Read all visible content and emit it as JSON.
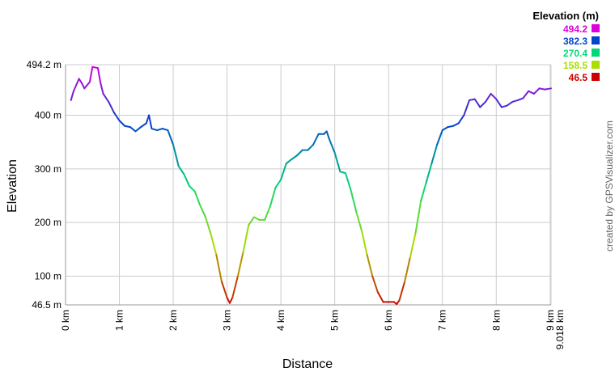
{
  "chart_data": {
    "type": "line",
    "ylabel": "Elevation",
    "xlabel": "Distance",
    "credit": "created by GPSVisualizer.com",
    "xlim": [
      0,
      9.018
    ],
    "ylim": [
      46.5,
      494.2
    ],
    "xticks": [
      {
        "value": 0,
        "label": "0 km"
      },
      {
        "value": 1,
        "label": "1 km"
      },
      {
        "value": 2,
        "label": "2 km"
      },
      {
        "value": 3,
        "label": "3 km"
      },
      {
        "value": 4,
        "label": "4 km"
      },
      {
        "value": 5,
        "label": "5 km"
      },
      {
        "value": 6,
        "label": "6 km"
      },
      {
        "value": 7,
        "label": "7 km"
      },
      {
        "value": 8,
        "label": "8 km"
      },
      {
        "value": 9,
        "label": "9 km"
      },
      {
        "value": 9.018,
        "label": "9.018 km"
      }
    ],
    "yticks": [
      {
        "value": 46.5,
        "label": "46.5 m"
      },
      {
        "value": 100,
        "label": "100 m"
      },
      {
        "value": 200,
        "label": "200 m"
      },
      {
        "value": 300,
        "label": "300 m"
      },
      {
        "value": 400,
        "label": "400 m"
      },
      {
        "value": 494.2,
        "label": "494.2 m"
      }
    ],
    "grid": true,
    "legend": {
      "title": "Elevation (m)",
      "entries": [
        {
          "value": 494.2,
          "color": "#dd00dd"
        },
        {
          "value": 382.3,
          "color": "#0044cc"
        },
        {
          "value": 270.4,
          "color": "#00d878"
        },
        {
          "value": 158.5,
          "color": "#aadd00"
        },
        {
          "value": 46.5,
          "color": "#cc0000"
        }
      ]
    },
    "x": [
      0.1,
      0.15,
      0.25,
      0.3,
      0.35,
      0.45,
      0.5,
      0.6,
      0.65,
      0.7,
      0.8,
      0.9,
      1.0,
      1.1,
      1.2,
      1.3,
      1.4,
      1.5,
      1.55,
      1.6,
      1.7,
      1.8,
      1.9,
      2.0,
      2.1,
      2.2,
      2.3,
      2.4,
      2.5,
      2.6,
      2.7,
      2.8,
      2.9,
      3.0,
      3.05,
      3.1,
      3.2,
      3.3,
      3.4,
      3.5,
      3.6,
      3.7,
      3.8,
      3.9,
      4.0,
      4.1,
      4.2,
      4.3,
      4.4,
      4.5,
      4.6,
      4.7,
      4.8,
      4.85,
      4.9,
      5.0,
      5.1,
      5.2,
      5.3,
      5.4,
      5.5,
      5.6,
      5.7,
      5.8,
      5.9,
      6.0,
      6.1,
      6.15,
      6.2,
      6.3,
      6.4,
      6.5,
      6.6,
      6.7,
      6.8,
      6.9,
      7.0,
      7.1,
      7.2,
      7.3,
      7.4,
      7.5,
      7.6,
      7.7,
      7.8,
      7.9,
      8.0,
      8.1,
      8.2,
      8.3,
      8.4,
      8.5,
      8.6,
      8.7,
      8.8,
      8.9,
      9.018
    ],
    "values": [
      428,
      445,
      468,
      460,
      450,
      462,
      490,
      488,
      460,
      440,
      425,
      405,
      390,
      380,
      378,
      370,
      378,
      385,
      400,
      375,
      372,
      375,
      372,
      345,
      305,
      290,
      268,
      258,
      232,
      210,
      178,
      140,
      90,
      60,
      50,
      60,
      100,
      145,
      195,
      210,
      205,
      205,
      230,
      265,
      280,
      310,
      318,
      325,
      335,
      335,
      345,
      365,
      365,
      370,
      355,
      330,
      295,
      292,
      260,
      220,
      185,
      140,
      100,
      70,
      52,
      52,
      52,
      48,
      55,
      90,
      135,
      180,
      240,
      275,
      310,
      345,
      372,
      378,
      380,
      385,
      400,
      428,
      430,
      415,
      425,
      440,
      430,
      415,
      418,
      425,
      428,
      432,
      445,
      440,
      450,
      448,
      450
    ]
  }
}
